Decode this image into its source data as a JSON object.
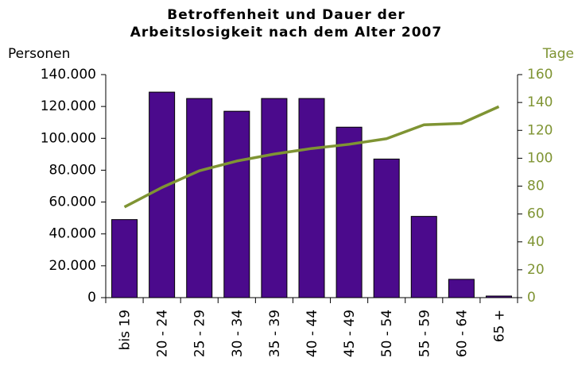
{
  "chart_data": {
    "type": "bar",
    "title": "Betroffenheit und Dauer der Arbeitslosigkeit nach dem Alter 2007",
    "y_label": "Personen",
    "y2_label": "Tage",
    "categories": [
      "bis 19",
      "20 - 24",
      "25 - 29",
      "30 - 34",
      "35 - 39",
      "40 - 44",
      "45 - 49",
      "50 - 54",
      "55 - 59",
      "60 - 64",
      "65 +"
    ],
    "series": [
      {
        "type": "bar",
        "color": "#4b0a8c",
        "values": [
          49000,
          129000,
          125000,
          117000,
          125000,
          125000,
          107000,
          87000,
          51000,
          11500,
          1000
        ]
      },
      {
        "type": "line",
        "axis": "y2",
        "color": "#7f9433",
        "values": [
          65,
          79,
          91,
          98,
          103,
          107,
          110,
          114,
          124,
          125,
          137
        ]
      }
    ],
    "ylim": [
      0,
      140000
    ],
    "yticks": [
      0,
      {
        "value": 20000,
        "label": "20.000"
      },
      {
        "value": 40000,
        "label": "40.000"
      },
      {
        "value": 60000,
        "label": "60.000"
      },
      {
        "value": 80000,
        "label": "80.000"
      },
      {
        "value": 100000,
        "label": "100.000"
      },
      {
        "value": 120000,
        "label": "120.000"
      },
      {
        "value": 140000,
        "label": "140.000"
      }
    ],
    "y2lim": [
      0,
      160
    ],
    "y2ticks": [
      0,
      20,
      40,
      60,
      80,
      100,
      120,
      140,
      160
    ],
    "y2_color": "#7f9433"
  }
}
